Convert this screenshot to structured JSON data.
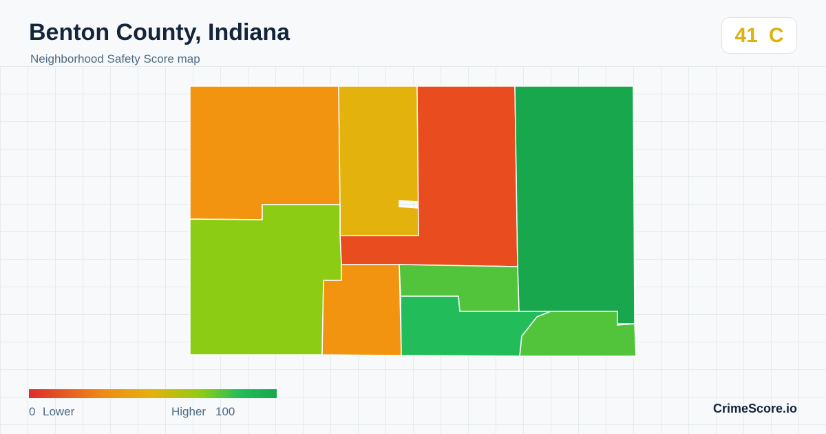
{
  "header": {
    "title": "Benton County, Indiana",
    "subtitle": "Neighborhood Safety Score map"
  },
  "score": {
    "value": 41,
    "grade": "C"
  },
  "legend": {
    "min": 0,
    "min_label": "Lower",
    "max_label": "Higher",
    "max": 100
  },
  "brand": "CrimeScore.io"
}
